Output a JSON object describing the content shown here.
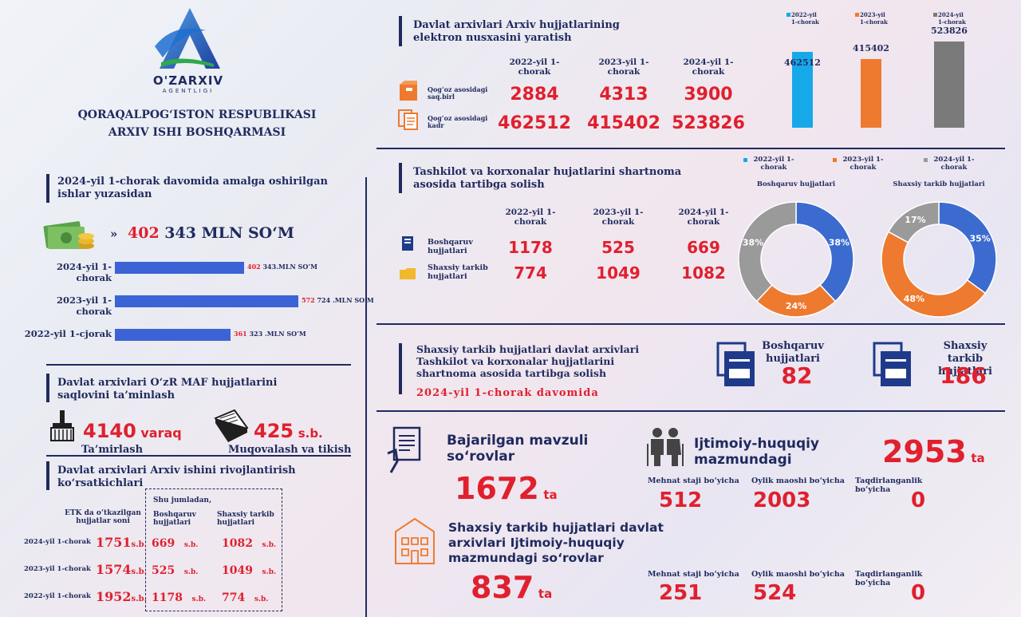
{
  "logo": {
    "brand": "O'ZARXIV",
    "sub": "AGENTLIGI"
  },
  "org": {
    "line1": "QORAQALPOG‘ISTON RESPUBLIKASI",
    "line2": "ARXIV ISHI  BOSHQARMASI"
  },
  "works": {
    "title": "2024-yil  1-chorak davomida amalga oshirilgan ishlar yuzasidan",
    "total_red": "402",
    "total_rest": "343 MLN SO‘M",
    "bars": [
      {
        "label": "2024-yil 1-chorak",
        "value_text": "402 343.MLN SO‘M",
        "value": 402343
      },
      {
        "label": "2023-yil 1-chorak",
        "value_text": "572 724 .MLN SO‘M",
        "value": 572724
      },
      {
        "label": "2022-yil 1-cjorak",
        "value_text": "361 323 .MLN SO‘M",
        "value": 361323
      }
    ]
  },
  "maf": {
    "title": "Davlat arxivlari  O‘zR MAF hujjatlarini saqlovini ta’minlash",
    "v1": "4140",
    "u1": "varaq",
    "l1": "Ta’mirlash",
    "v2": "425",
    "u2": "s.b.",
    "l2": "Muqovalash va tikish"
  },
  "dev": {
    "title": "Davlat arxivlari Arxiv ishini rivojlantirish ko‘rsatkichlari",
    "col0": "ETK da o‘tkazilgan hujjatlar soni",
    "note": "Shu jumladan,",
    "col1": "Boshqaruv hujjatlari",
    "col2": "Shaxsiy tarkib hujjatlari",
    "rows": [
      {
        "label": "2024-yil 1-chorak",
        "a": "1751",
        "b": "669",
        "c": "1082"
      },
      {
        "label": "2023-yil 1-chorak",
        "a": "1574",
        "b": "525",
        "c": "1049"
      },
      {
        "label": "2022-yil 1-chorak",
        "a": "1952",
        "b": "1178",
        "c": "774"
      }
    ],
    "unit": "s.b."
  },
  "digit": {
    "title": "Davlat arxivlari Arxiv hujjatlarining elektron nusxasini yaratish",
    "years": [
      "2022-yil 1-chorak",
      "2023-yil 1-chorak",
      "2024-yil 1-chorak"
    ],
    "rows": [
      {
        "label": "Qog‘oz asosidagi saq.birl",
        "values": [
          "2884",
          "4313",
          "3900"
        ]
      },
      {
        "label": "Qog‘oz asosidagi kadr",
        "values": [
          "462512",
          "415402",
          "523826"
        ]
      }
    ]
  },
  "contract": {
    "title": "Tashkilot va korxonalar hujatlarini shartnoma asosida tartibga solish",
    "years": [
      "2022-yil 1-chorak",
      "2023-yil 1-chorak",
      "2024-yil 1-chorak"
    ],
    "rows": [
      {
        "label": "Boshqaruv hujjatlari",
        "values": [
          "1178",
          "525",
          "669"
        ]
      },
      {
        "label": "Shaxsiy tarkib hujjatlari",
        "values": [
          "774",
          "1049",
          "1082"
        ]
      }
    ]
  },
  "personal": {
    "title": "Shaxsiy tarkib hujjatlari davlat arxivlari Tashkilot va korxonalar hujjatlarini shartnoma asosida tartibga solish",
    "period": "2024-yil 1-chorak davomida",
    "b_label": "Boshqaruv hujjatlari",
    "b_value": "82",
    "s_label": "Shaxsiy tarkib hujjatlari",
    "s_value": "186"
  },
  "requests": {
    "theme_label": "Bajarilgan mavzuli so‘rovlar",
    "theme_value": "1672",
    "unit": "ta",
    "social_label": "Ijtimoiy-huquqiy mazmundagi",
    "social_value": "2953",
    "cols": [
      "Mehnat staji bo‘yicha",
      "Oylik maoshi bo‘yicha",
      "Taqdirlanganlik bo‘yicha"
    ],
    "social_vals": [
      "512",
      "2003",
      "0"
    ],
    "archive_label": "Shaxsiy tarkib hujjatlari davlat arxivlari Ijtimoiy-huquqiy mazmundagi so‘rovlar",
    "archive_value": "837",
    "archive_vals": [
      "251",
      "524",
      "0"
    ]
  },
  "colors": {
    "navy": "#1f2a5e",
    "red": "#e0202e",
    "blue": "#3c6bd0",
    "orange": "#ee7a2f",
    "gray": "#909090",
    "cyan": "#16a9ea"
  },
  "chart_data": [
    {
      "type": "bar",
      "categories": [
        "2022-yil 1-chorak",
        "2023-yil 1-chorak",
        "2024-yil 1-chorak"
      ],
      "values": [
        462512,
        415402,
        523826
      ],
      "value_labels": [
        "462512",
        "415402",
        "523826"
      ],
      "colors": [
        "#16a9ea",
        "#ee7a2f",
        "#7a7a7a"
      ],
      "legend": [
        "2022-yil 1-chorak",
        "2023-yil 1-chorak",
        "2024-yil 1-chorak"
      ]
    },
    {
      "type": "pie",
      "legend": [
        "2022-yil 1-chorak",
        "2023-yil 1-chorak",
        "2024-yil 1-chorak"
      ],
      "title": "Boshqaruv hujjatlari",
      "slices": [
        {
          "name": "2022-yil 1-chorak",
          "value": 38,
          "label": "38%",
          "color": "#3c6bd0"
        },
        {
          "name": "2023-yil 1-chorak",
          "value": 24,
          "label": "24%",
          "color": "#ee7a2f"
        },
        {
          "name": "2024-yil 1-chorak",
          "value": 38,
          "label": "38%",
          "color": "#9a9a9a"
        }
      ]
    },
    {
      "type": "pie",
      "title": "Shaxsiy tarkib hujjatlari",
      "slices": [
        {
          "name": "2022-yil 1-chorak",
          "value": 35,
          "label": "35%",
          "color": "#3c6bd0"
        },
        {
          "name": "2023-yil 1-chorak",
          "value": 48,
          "label": "48%",
          "color": "#ee7a2f"
        },
        {
          "name": "2024-yil 1-chorak",
          "value": 17,
          "label": "17%",
          "color": "#9a9a9a"
        }
      ]
    }
  ]
}
